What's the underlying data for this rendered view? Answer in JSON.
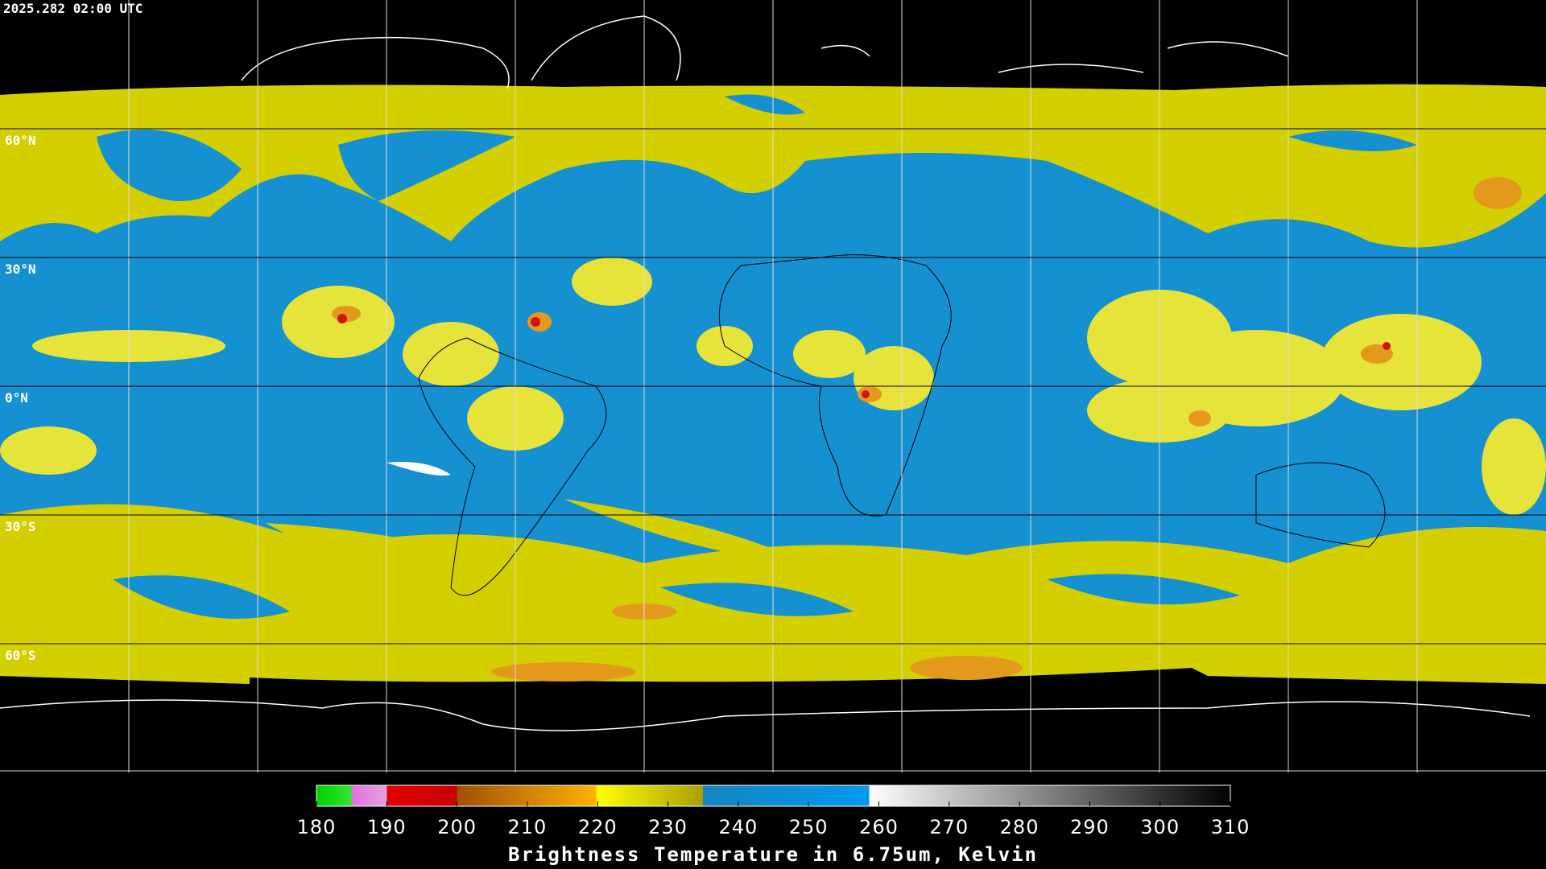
{
  "header": {
    "timestamp": "2025.282 02:00 UTC"
  },
  "map": {
    "lat_labels": [
      "60°N",
      "30°N",
      "0°N",
      "30°S",
      "60°S"
    ]
  },
  "colorbar": {
    "range": [
      180,
      310
    ],
    "ticks": [
      180,
      190,
      200,
      210,
      220,
      230,
      240,
      250,
      260,
      270,
      280,
      290,
      300,
      310
    ],
    "label": "Brightness Temperature in 6.75um, Kelvin"
  }
}
